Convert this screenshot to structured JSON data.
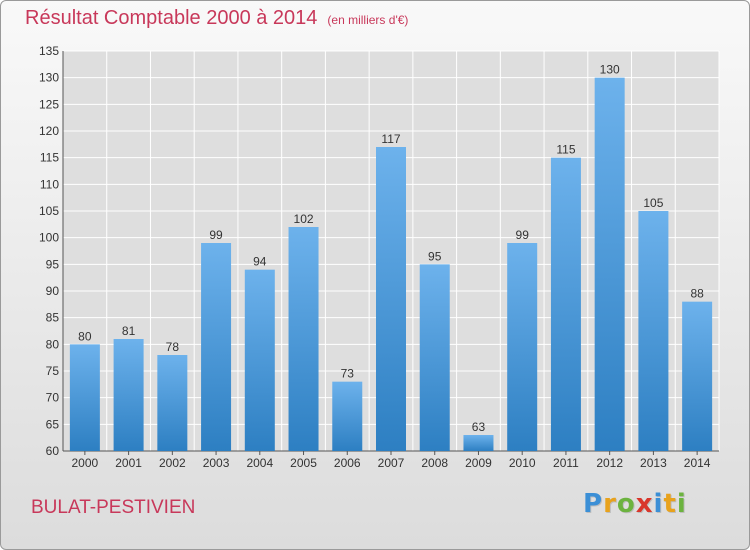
{
  "title": "Résultat Comptable 2000 à 2014",
  "unit": "(en milliers d'€)",
  "commune": "BULAT-PESTIVIEN",
  "logo": {
    "text": "Proxiti",
    "letters": [
      {
        "char": "P",
        "color": "#3b8fd6"
      },
      {
        "char": "r",
        "color": "#e8a21c"
      },
      {
        "char": "o",
        "color": "#6cb33f"
      },
      {
        "char": "x",
        "color": "#d9362b"
      },
      {
        "char": "i",
        "color": "#3b8fd6"
      },
      {
        "char": "t",
        "color": "#e8a21c"
      },
      {
        "char": "i",
        "color": "#6cb33f"
      }
    ]
  },
  "colors": {
    "bar_top": "#6db2ec",
    "bar_bottom": "#2d7fc2",
    "grid": "#ffffff",
    "title": "#c8385a",
    "text": "#333333"
  },
  "chart_data": {
    "type": "bar",
    "categories": [
      "2000",
      "2001",
      "2002",
      "2003",
      "2004",
      "2005",
      "2006",
      "2007",
      "2008",
      "2009",
      "2010",
      "2011",
      "2012",
      "2013",
      "2014"
    ],
    "values": [
      80,
      81,
      78,
      99,
      94,
      102,
      73,
      117,
      95,
      63,
      99,
      115,
      130,
      105,
      88
    ],
    "ylim": [
      60,
      135
    ],
    "yticks": [
      60,
      65,
      70,
      75,
      80,
      85,
      90,
      95,
      100,
      105,
      110,
      115,
      120,
      125,
      130,
      135
    ],
    "grid": true,
    "data_labels": true
  }
}
